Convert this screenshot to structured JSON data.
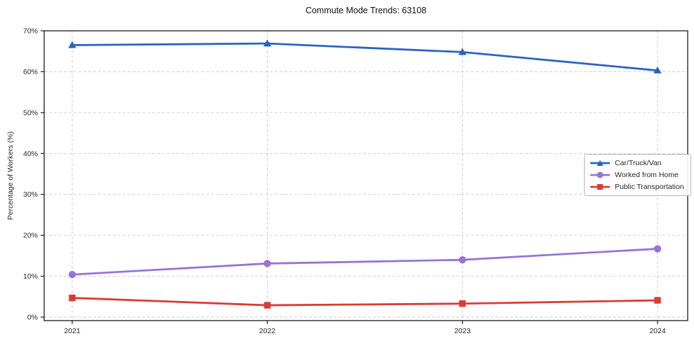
{
  "chart_data": {
    "type": "line",
    "title": "Commute Mode Trends: 63108",
    "xlabel": "",
    "ylabel": "Percentage of Workers (%)",
    "categories": [
      "2021",
      "2022",
      "2023",
      "2024"
    ],
    "series": [
      {
        "name": "Car/Truck/Van",
        "values": [
          66.5,
          66.9,
          64.8,
          60.3
        ],
        "color": "#2b63c4",
        "marker": "triangle"
      },
      {
        "name": "Worked from Home",
        "values": [
          10.4,
          13.1,
          14.0,
          16.7
        ],
        "color": "#9873d8",
        "marker": "circle"
      },
      {
        "name": "Public Transportation",
        "values": [
          4.7,
          2.9,
          3.3,
          4.1
        ],
        "color": "#db3b32",
        "marker": "square"
      }
    ],
    "ylim": [
      0,
      70
    ],
    "ytick_step": 10,
    "ytick_suffix": "%",
    "grid": true,
    "grid_style": "dashed",
    "legend_position": "center-right"
  },
  "style": {
    "grid_color": "#c9c9c9",
    "frame_color": "#1a1a1a",
    "tick_label_color": "#262626"
  }
}
